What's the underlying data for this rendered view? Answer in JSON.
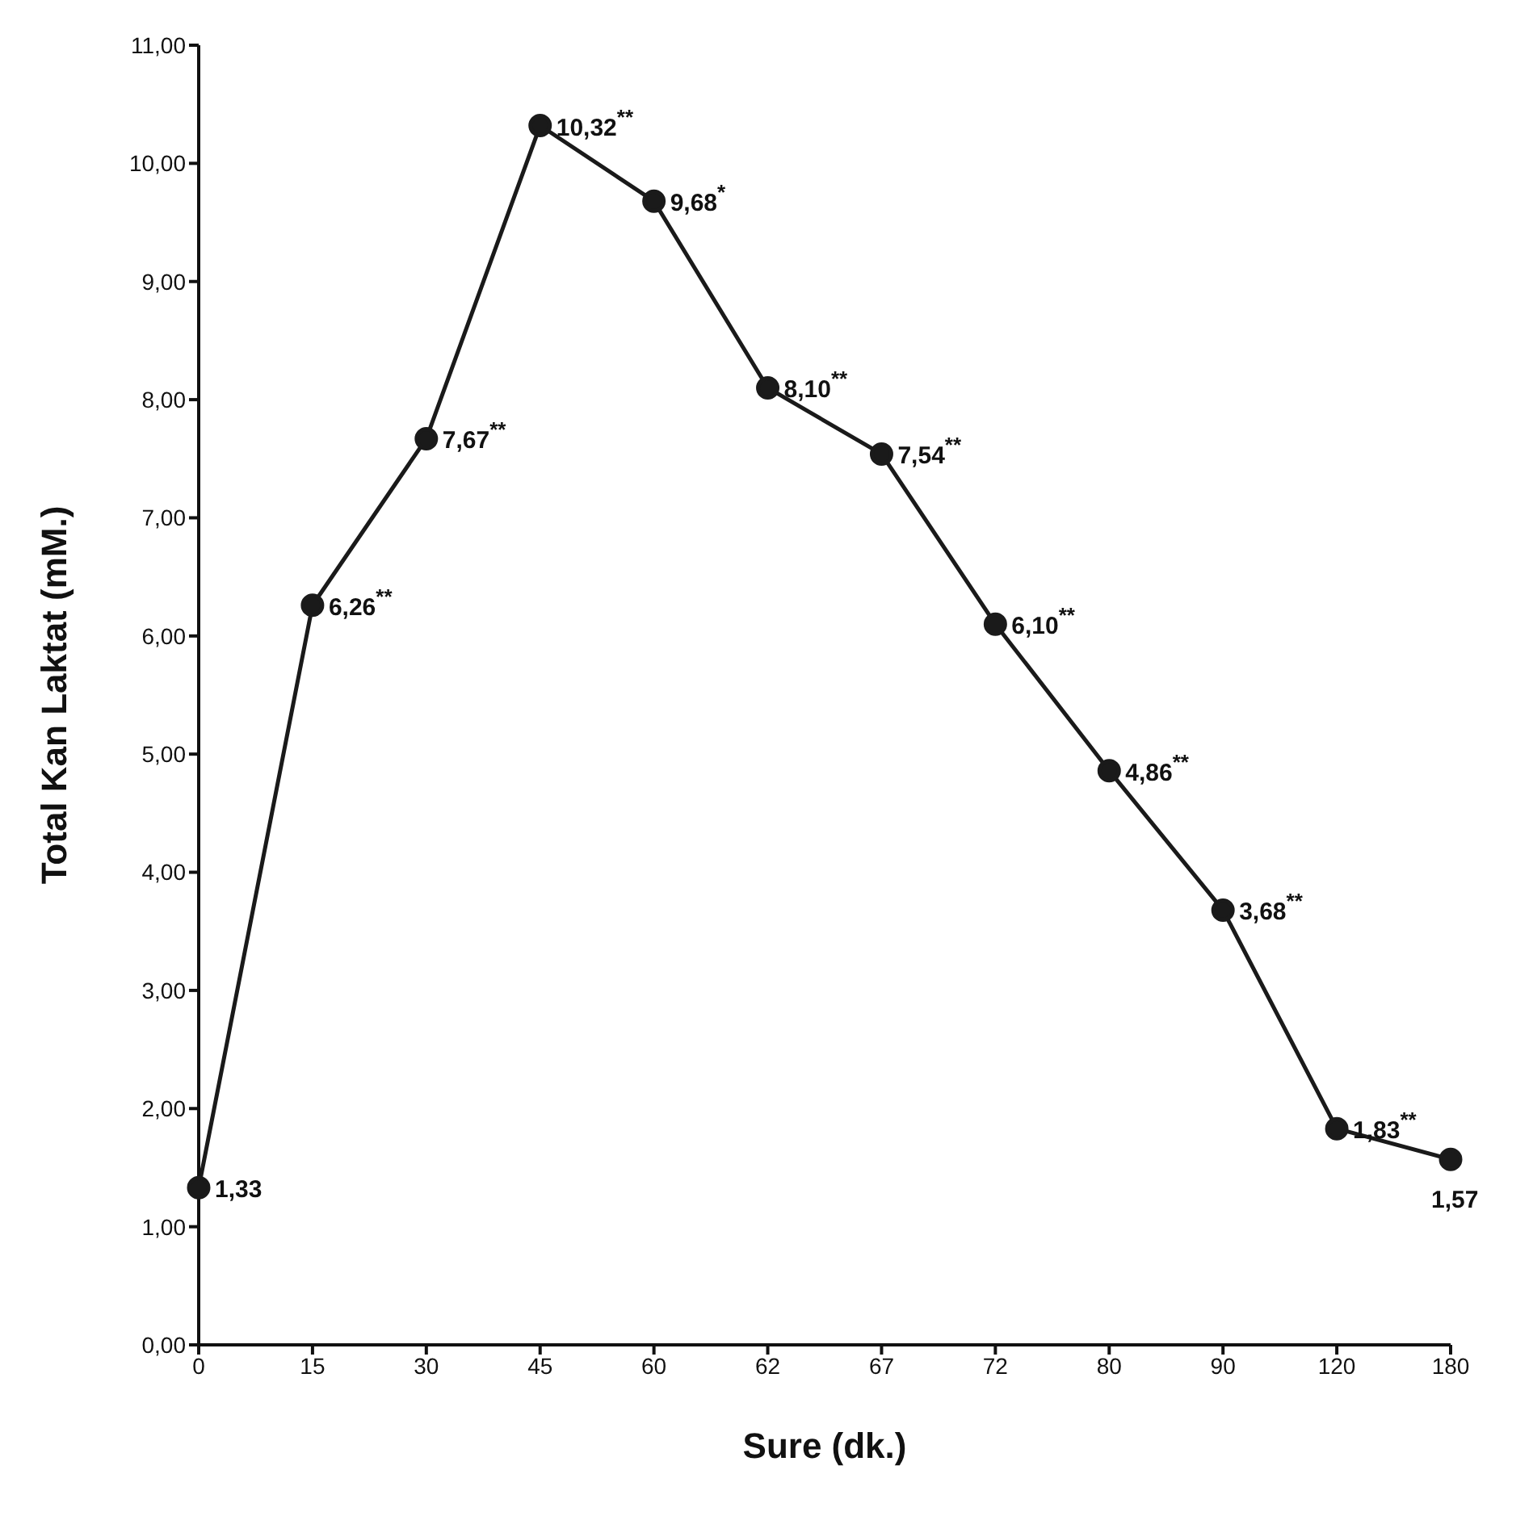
{
  "chart_data": {
    "type": "line",
    "xlabel": "Sure (dk.)",
    "ylabel": "Total Kan Laktat (mM.)",
    "categories": [
      "0",
      "15",
      "30",
      "45",
      "60",
      "62",
      "67",
      "72",
      "80",
      "90",
      "120",
      "180"
    ],
    "series": [
      {
        "color": "#1a1a1a",
        "values": [
          1.33,
          6.26,
          7.67,
          10.32,
          9.68,
          8.1,
          7.54,
          6.1,
          4.86,
          3.68,
          1.83,
          1.57
        ],
        "value_labels": [
          "1,33",
          "6,26$^{**}$",
          "7,67$^{**}$",
          "10,32$^{**}$",
          "9,68$^{*}$",
          "8,10$^{**}$",
          "7,54$^{**}$",
          "6,10$^{**}$",
          "4,86$^{**}$",
          "3,68$^{**}$",
          "1,83$^{**}$",
          "1,57"
        ]
      }
    ],
    "ylim": [
      0,
      11
    ],
    "yticks": [
      {
        "value": 0,
        "label": "0,00"
      },
      {
        "value": 1,
        "label": "1,00"
      },
      {
        "value": 2,
        "label": "2,00"
      },
      {
        "value": 3,
        "label": "3,00"
      },
      {
        "value": 4,
        "label": "4,00"
      },
      {
        "value": 5,
        "label": "5,00"
      },
      {
        "value": 6,
        "label": "6,00"
      },
      {
        "value": 7,
        "label": "7,00"
      },
      {
        "value": 8,
        "label": "8,00"
      },
      {
        "value": 9,
        "label": "9,00"
      },
      {
        "value": 10,
        "label": "10,00"
      },
      {
        "value": 11,
        "label": "11,00"
      }
    ],
    "grid": false,
    "legend": false,
    "marker": "circle",
    "line_style": "solid"
  }
}
